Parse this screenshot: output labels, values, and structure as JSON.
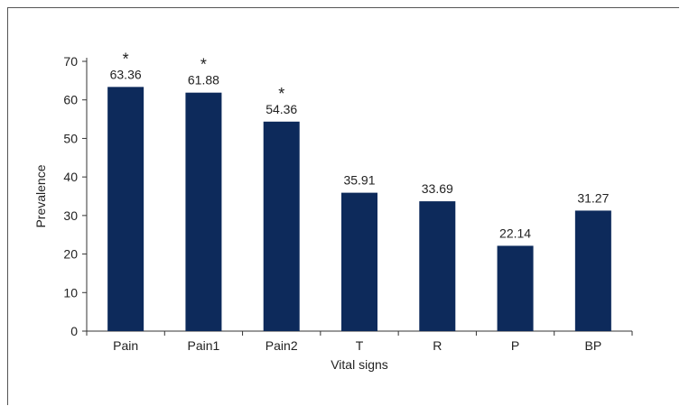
{
  "chart_data": {
    "type": "bar",
    "categories": [
      "Pain",
      "Pain1",
      "Pain2",
      "T",
      "R",
      "P",
      "BP"
    ],
    "values": [
      63.36,
      61.88,
      54.36,
      35.91,
      33.69,
      22.14,
      31.27
    ],
    "value_labels": [
      "63.36",
      "61.88",
      "54.36",
      "35.91",
      "33.69",
      "22.14",
      "31.27"
    ],
    "significance_markers": [
      "*",
      "*",
      "*",
      "",
      "",
      "",
      ""
    ],
    "xlabel": "Vital signs",
    "ylabel": "Prevalence",
    "ylim": [
      0,
      70
    ],
    "yticks": [
      "0",
      "10",
      "20",
      "30",
      "40",
      "50",
      "60",
      "70"
    ],
    "bar_color": "#0d2a5b",
    "grid": false,
    "legend": "none"
  }
}
